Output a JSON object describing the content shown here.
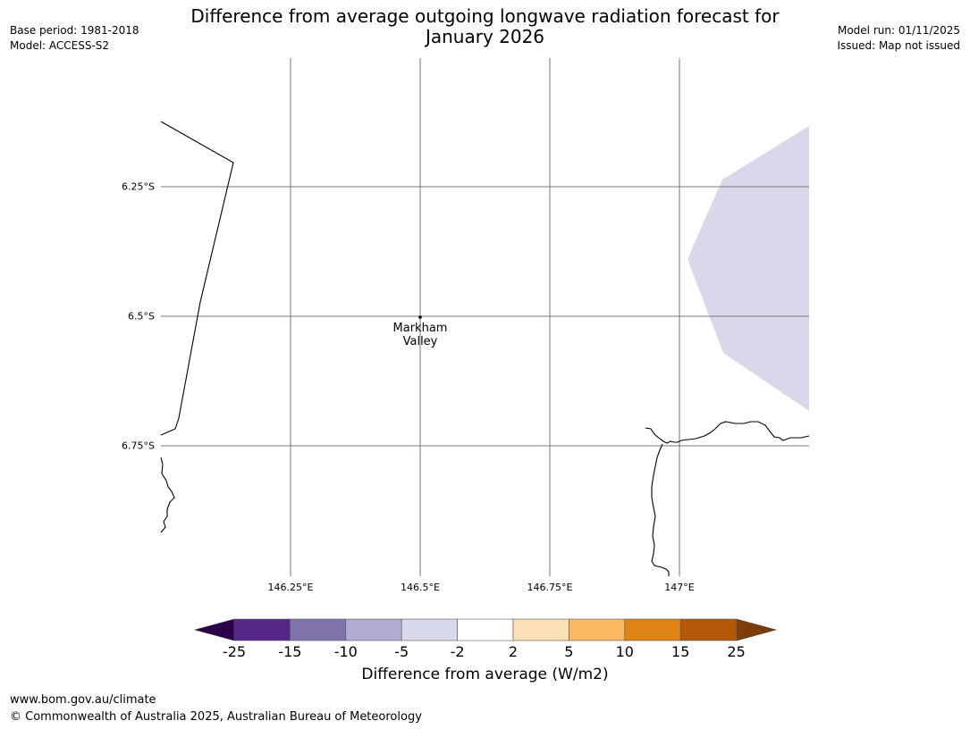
{
  "title": {
    "line1": "Difference from average outgoing longwave radiation forecast for",
    "line2": "January 2026"
  },
  "meta_left": {
    "base_period": "Base period: 1981-2018",
    "model": "Model: ACCESS-S2"
  },
  "meta_right": {
    "model_run": "Model run: 01/11/2025",
    "issued": "Issued: Map not issued"
  },
  "map": {
    "lat_labels": [
      "6.25°S",
      "6.5°S",
      "6.75°S"
    ],
    "lon_labels": [
      "146.25°E",
      "146.5°E",
      "146.75°E",
      "147°E"
    ],
    "place": {
      "name_line1": "Markham",
      "name_line2": "Valley",
      "lon": 146.5,
      "lat": -6.5
    },
    "anomaly_region_category": "-5 to -2",
    "anomaly_region_color": "#d8d8ea"
  },
  "colorbar": {
    "title": "Difference from average (W/m2)",
    "ticks": [
      "-25",
      "-15",
      "-10",
      "-5",
      "-2",
      "2",
      "5",
      "10",
      "15",
      "25"
    ],
    "colors": [
      "#542788",
      "#8073ac",
      "#b2abd2",
      "#d8daeb",
      "#ffffff",
      "#fee0b6",
      "#fdb863",
      "#e08214",
      "#b35806"
    ],
    "under_color": "#2d004b",
    "over_color": "#7f3b08"
  },
  "footer": {
    "url": "www.bom.gov.au/climate",
    "copyright": "© Commonwealth of Australia 2025, Australian Bureau of Meteorology"
  }
}
